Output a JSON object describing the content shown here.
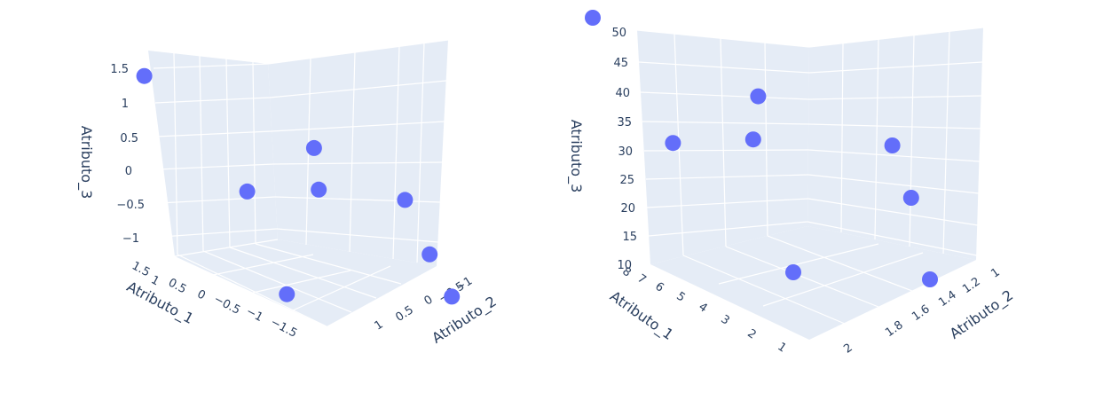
{
  "chart_data": [
    {
      "type": "scatter",
      "mode": "3d",
      "marker_color": "#636efa",
      "background_color": "#e5ecf6",
      "xlabel": "Atributo_1",
      "ylabel": "Atributo_2",
      "zlabel": "Atributo_3",
      "x_ticks": [
        "1.5",
        "1",
        "0.5",
        "0",
        "−0.5",
        "−1",
        "−1.5"
      ],
      "y_ticks": [
        "−1",
        "−0.5",
        "0",
        "0.5",
        "1"
      ],
      "z_ticks": [
        "1.5",
        "1",
        "0.5",
        "0",
        "−0.5",
        "−1"
      ],
      "points": [
        {
          "x": 1.6,
          "y": -1.0,
          "z": 1.7
        },
        {
          "x": 0.5,
          "y": -0.3,
          "z": 0.1
        },
        {
          "x": 0.0,
          "y": 0.4,
          "z": 0.2
        },
        {
          "x": -0.9,
          "y": -0.4,
          "z": 0.9
        },
        {
          "x": -1.4,
          "y": 0.6,
          "z": 0.2
        },
        {
          "x": -1.5,
          "y": 0.9,
          "z": -0.6
        },
        {
          "x": -1.0,
          "y": -0.9,
          "z": -1.3
        },
        {
          "x": -1.8,
          "y": 1.0,
          "z": -1.2
        }
      ]
    },
    {
      "type": "scatter",
      "mode": "3d",
      "marker_color": "#636efa",
      "background_color": "#e5ecf6",
      "xlabel": "Atributo_1",
      "ylabel": "Atributo_2",
      "zlabel": "Atributo_3",
      "x_ticks": [
        "8",
        "7",
        "6",
        "5",
        "4",
        "3",
        "2",
        "1"
      ],
      "y_ticks": [
        "1",
        "1.2",
        "1.4",
        "1.6",
        "1.8",
        "2"
      ],
      "z_ticks": [
        "50",
        "45",
        "40",
        "35",
        "30",
        "25",
        "20",
        "15",
        "10"
      ],
      "points": [
        {
          "x": 8,
          "y": 1.0,
          "z": 50
        },
        {
          "x": 6,
          "y": 1.2,
          "z": 30
        },
        {
          "x": 4,
          "y": 1.4,
          "z": 32
        },
        {
          "x": 2,
          "y": 1.2,
          "z": 41
        },
        {
          "x": 1,
          "y": 1.8,
          "z": 33
        },
        {
          "x": 1,
          "y": 1.9,
          "z": 24
        },
        {
          "x": 3,
          "y": 1.5,
          "z": 10
        },
        {
          "x": 1,
          "y": 2.0,
          "z": 10
        }
      ]
    }
  ]
}
